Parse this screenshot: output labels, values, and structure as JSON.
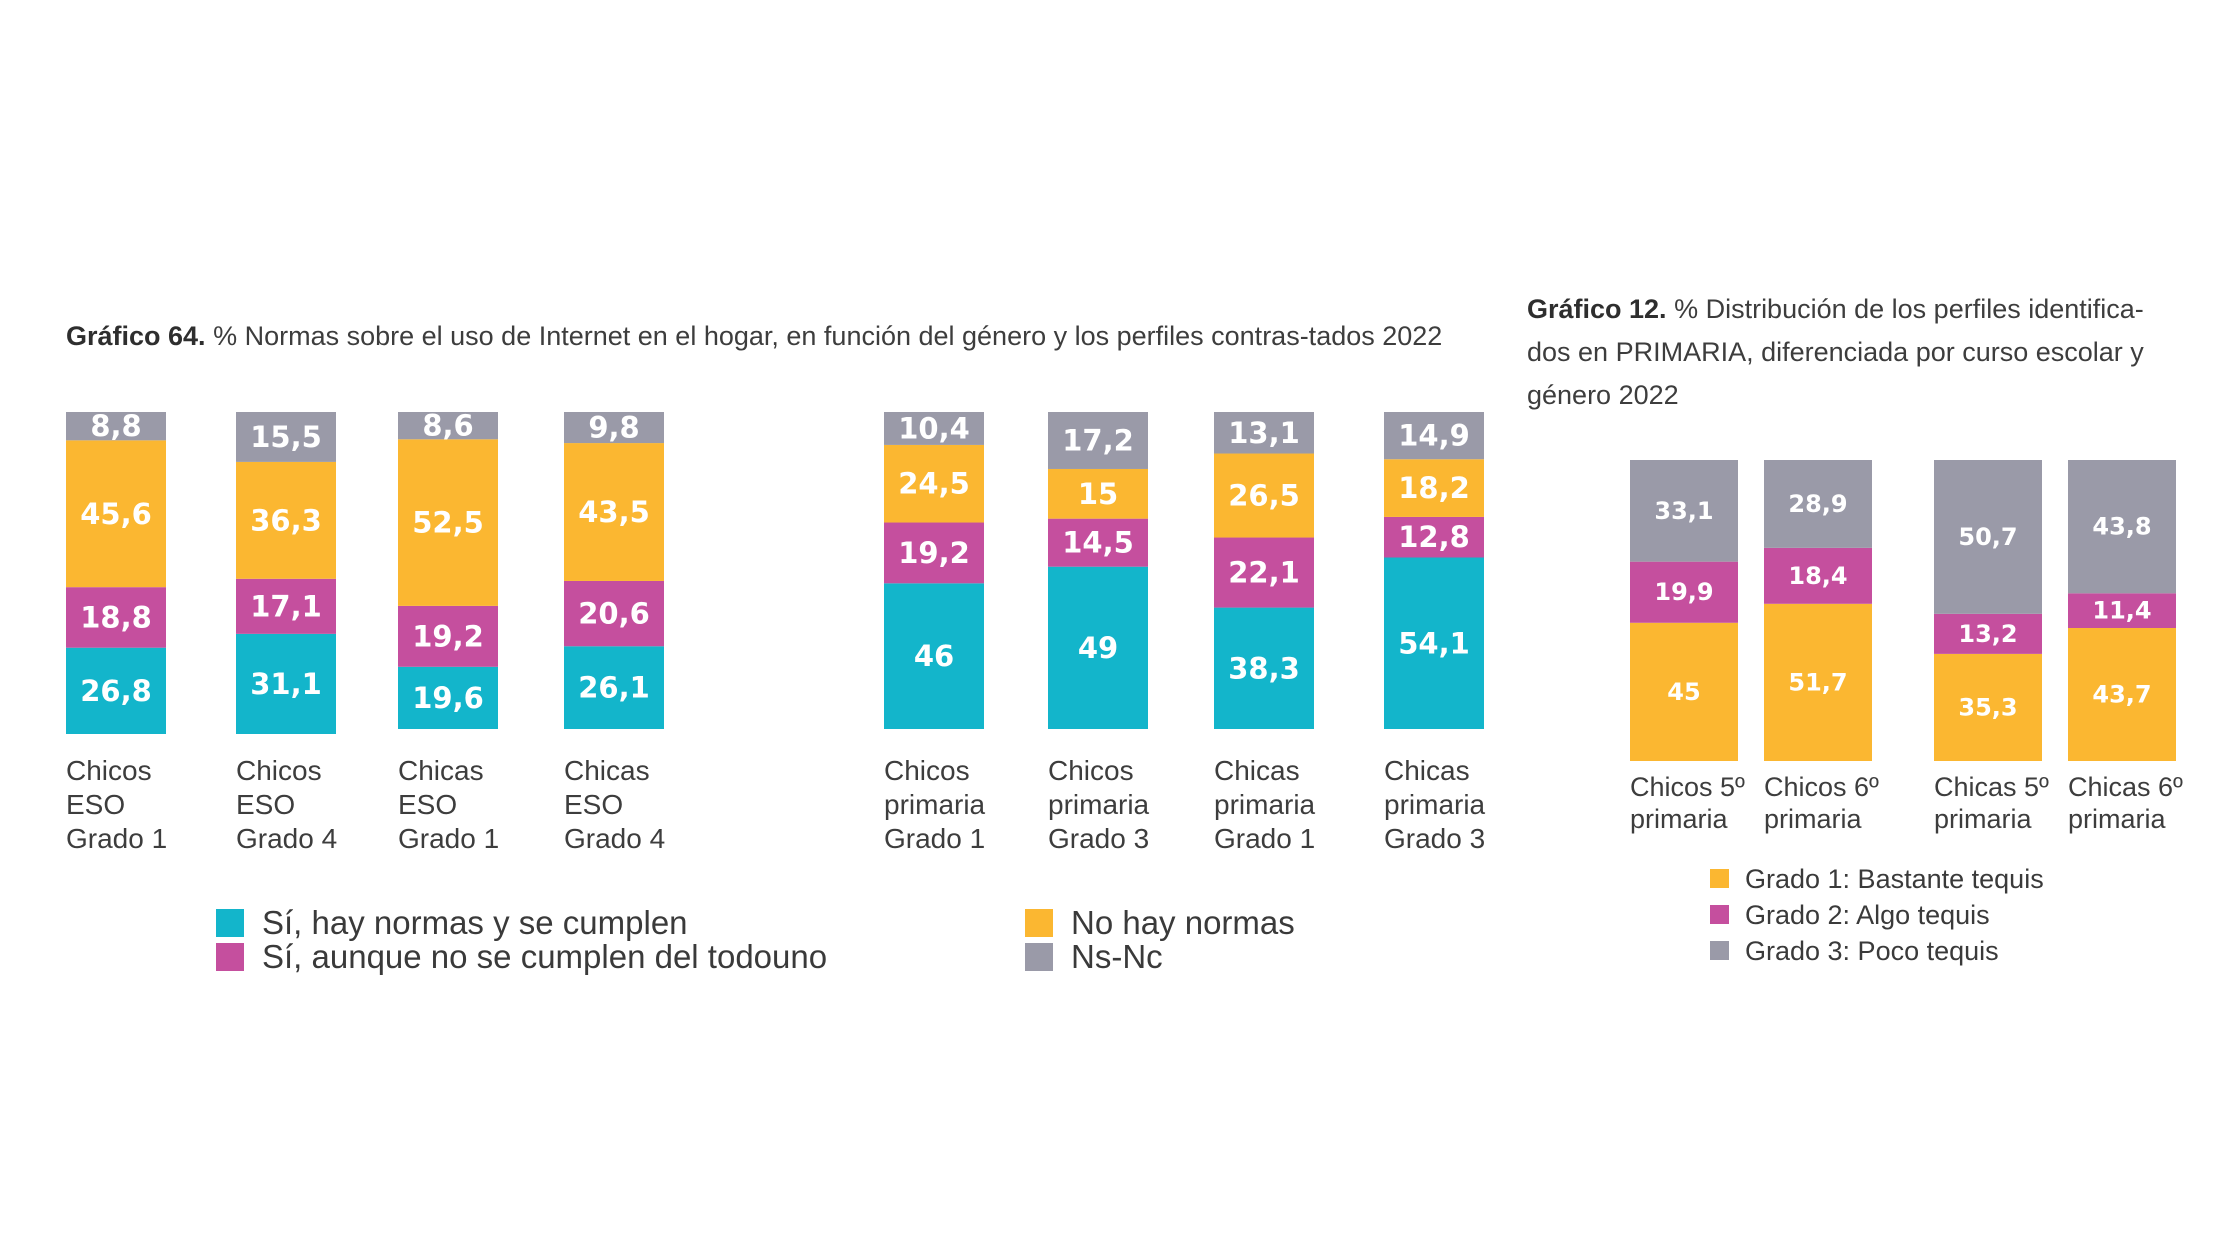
{
  "colors": {
    "cumplen": "#13B5CB",
    "no_cumplen": "#C54F9E",
    "no_normas": "#FBB731",
    "nsnc": "#9A9AA8",
    "grado1": "#FBB731",
    "grado2": "#C54F9E",
    "grado3": "#9A9AA8"
  },
  "chart64": {
    "title_bold": "Gráfico 64.",
    "title_rest": " % Normas sobre el uso de Internet en el hogar, en función del género y los perfiles contras-tados 2022",
    "legend": [
      {
        "label": "Sí, hay normas y se cumplen",
        "color_key": "cumplen"
      },
      {
        "label": "Sí, aunque no se cumplen del todouno",
        "color_key": "no_cumplen"
      },
      {
        "label": "No hay normas",
        "color_key": "no_normas"
      },
      {
        "label": "Ns-Nc",
        "color_key": "nsnc"
      }
    ]
  },
  "chart12": {
    "title_bold": "Gráfico 12.",
    "title_rest": " % Distribución de los perfiles identifica-dos en PRIMARIA, diferenciada por curso escolar y género 2022",
    "legend": [
      {
        "label": "Grado 1: Bastante tequis",
        "color_key": "grado1"
      },
      {
        "label": "Grado 2: Algo tequis",
        "color_key": "grado2"
      },
      {
        "label": "Grado 3: Poco tequis",
        "color_key": "grado3"
      }
    ]
  },
  "chart_data": [
    {
      "type": "bar",
      "stacked": true,
      "title": "Gráfico 64. % Normas sobre el uso de Internet en el hogar, en función del género y los perfiles contras-tados 2022",
      "categories": [
        "Chicos ESO Grado 1",
        "Chicos ESO Grado 4",
        "Chicas ESO Grado 1",
        "Chicas ESO Grado 4",
        "Chicos primaria Grado 1",
        "Chicos primaria Grado 3",
        "Chicas primaria Grado 1",
        "Chicas primaria Grado 3"
      ],
      "series": [
        {
          "name": "Sí, hay normas y se cumplen",
          "values": [
            26.8,
            31.1,
            19.6,
            26.1,
            46,
            49,
            38.3,
            54.1
          ]
        },
        {
          "name": "Sí, aunque no se cumplen del todouno",
          "values": [
            18.8,
            17.1,
            19.2,
            20.6,
            19.2,
            14.5,
            22.1,
            12.8
          ]
        },
        {
          "name": "No hay normas",
          "values": [
            45.6,
            36.3,
            52.5,
            43.5,
            24.5,
            15,
            26.5,
            18.2
          ]
        },
        {
          "name": "Ns-Nc",
          "values": [
            8.8,
            15.5,
            8.6,
            9.8,
            10.4,
            17.2,
            13.1,
            14.9
          ]
        }
      ],
      "value_labels": [
        [
          "26,8",
          "31,1",
          "19,6",
          "26,1",
          "46",
          "49",
          "38,3",
          "54,1"
        ],
        [
          "18,8",
          "17,1",
          "19,2",
          "20,6",
          "19,2",
          "14,5",
          "22,1",
          "12,8"
        ],
        [
          "45,6",
          "36,3",
          "52,5",
          "43,5",
          "24,5",
          "15",
          "26,5",
          "18,2"
        ],
        [
          "8,8",
          "15,5",
          "8,6",
          "9,8",
          "10,4",
          "17,2",
          "13,1",
          "14,9"
        ]
      ],
      "category_lines": [
        [
          "Chicos",
          "ESO",
          "Grado 1"
        ],
        [
          "Chicos",
          "ESO",
          "Grado 4"
        ],
        [
          "Chicas",
          "ESO",
          "Grado 1"
        ],
        [
          "Chicas",
          "ESO",
          "Grado 4"
        ],
        [
          "Chicos",
          "primaria",
          "Grado 1"
        ],
        [
          "Chicos",
          "primaria",
          "Grado 3"
        ],
        [
          "Chicas",
          "primaria",
          "Grado 1"
        ],
        [
          "Chicas",
          "primaria",
          "Grado 3"
        ]
      ],
      "legend_position": "bottom"
    },
    {
      "type": "bar",
      "stacked": true,
      "title": "Gráfico 12. % Distribución de los perfiles identifica-dos en PRIMARIA, diferenciada por curso escolar y género 2022",
      "categories": [
        "Chicos 5º primaria",
        "Chicos 6º primaria",
        "Chicas 5º primaria",
        "Chicas 6º primaria"
      ],
      "series": [
        {
          "name": "Grado 1: Bastante tequis",
          "values": [
            45,
            51.7,
            35.3,
            43.7
          ]
        },
        {
          "name": "Grado 2: Algo tequis",
          "values": [
            19.9,
            18.4,
            13.2,
            11.4
          ]
        },
        {
          "name": "Grado 3: Poco tequis",
          "values": [
            33.1,
            28.9,
            50.7,
            43.8
          ]
        }
      ],
      "value_labels": [
        [
          "45",
          "51,7",
          "35,3",
          "43,7"
        ],
        [
          "19,9",
          "18,4",
          "13,2",
          "11,4"
        ],
        [
          "33,1",
          "28,9",
          "50,7",
          "43,8"
        ]
      ],
      "category_lines": [
        [
          "Chicos 5º",
          "primaria"
        ],
        [
          "Chicos 6º",
          "primaria"
        ],
        [
          "Chicas 5º",
          "primaria"
        ],
        [
          "Chicas 6º",
          "primaria"
        ]
      ],
      "legend_position": "bottom"
    }
  ]
}
